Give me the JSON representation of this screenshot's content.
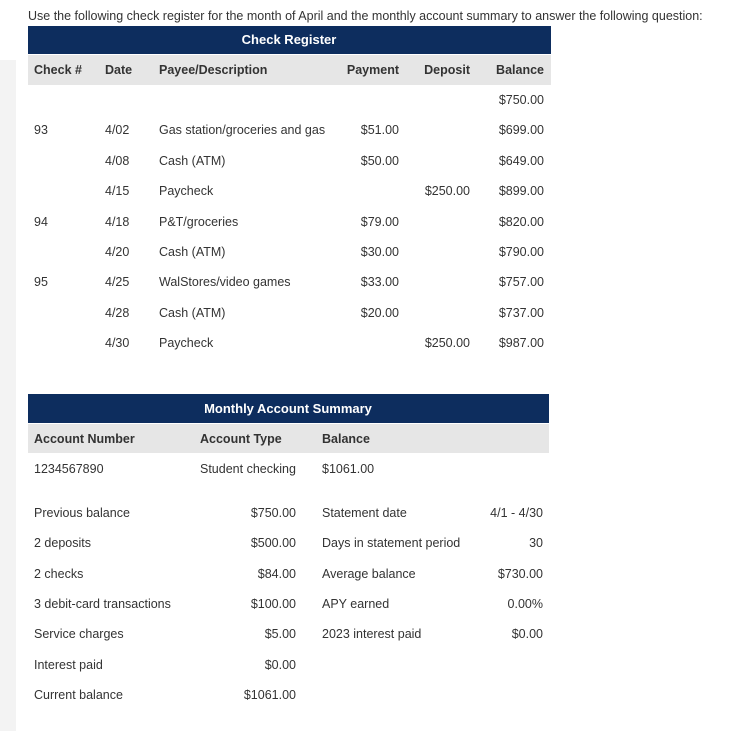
{
  "intro": "Use the following check register for the month of April and the monthly account summary to answer the following question:",
  "check_register": {
    "title": "Check Register",
    "columns": [
      "Check #",
      "Date",
      "Payee/Description",
      "Payment",
      "Deposit",
      "Balance"
    ],
    "rows": [
      [
        null,
        null,
        null,
        null,
        null,
        "$750.00"
      ],
      [
        "93",
        "4/02",
        "Gas station/groceries and gas",
        "$51.00",
        null,
        "$699.00"
      ],
      [
        null,
        "4/08",
        "Cash (ATM)",
        "$50.00",
        null,
        "$649.00"
      ],
      [
        null,
        "4/15",
        "Paycheck",
        null,
        "$250.00",
        "$899.00"
      ],
      [
        "94",
        "4/18",
        "P&T/groceries",
        "$79.00",
        null,
        "$820.00"
      ],
      [
        null,
        "4/20",
        "Cash (ATM)",
        "$30.00",
        null,
        "$790.00"
      ],
      [
        "95",
        "4/25",
        "WalStores/video games",
        "$33.00",
        null,
        "$757.00"
      ],
      [
        null,
        "4/28",
        "Cash (ATM)",
        "$20.00",
        null,
        "$737.00"
      ],
      [
        null,
        "4/30",
        "Paycheck",
        null,
        "$250.00",
        "$987.00"
      ]
    ]
  },
  "account_summary": {
    "title": "Monthly Account Summary",
    "columns": [
      "Account Number",
      "Account Type",
      "Balance"
    ],
    "row": [
      "1234567890",
      "Student checking",
      "$1061.00"
    ],
    "details": [
      [
        "Previous balance",
        "$750.00",
        "Statement date",
        "4/1 - 4/30"
      ],
      [
        "2 deposits",
        "$500.00",
        "Days in statement period",
        "30"
      ],
      [
        "2 checks",
        "$84.00",
        "Average balance",
        "$730.00"
      ],
      [
        "3 debit-card transactions",
        "$100.00",
        "APY earned",
        "0.00%"
      ],
      [
        "Service charges",
        "$5.00",
        "2023 interest paid",
        "$0.00"
      ],
      [
        "Interest paid",
        "$0.00",
        null,
        null
      ],
      [
        "Current balance",
        "$1061.00",
        null,
        null
      ]
    ]
  }
}
